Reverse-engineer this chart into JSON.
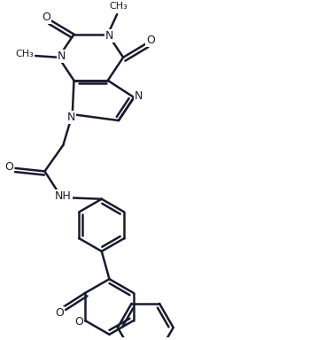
{
  "background": "#ffffff",
  "line_color": "#1a1a2e",
  "line_width": 1.8,
  "font_size": 9,
  "fig_width": 3.58,
  "fig_height": 3.84,
  "xlim": [
    0,
    10
  ],
  "ylim": [
    0,
    10.7
  ]
}
